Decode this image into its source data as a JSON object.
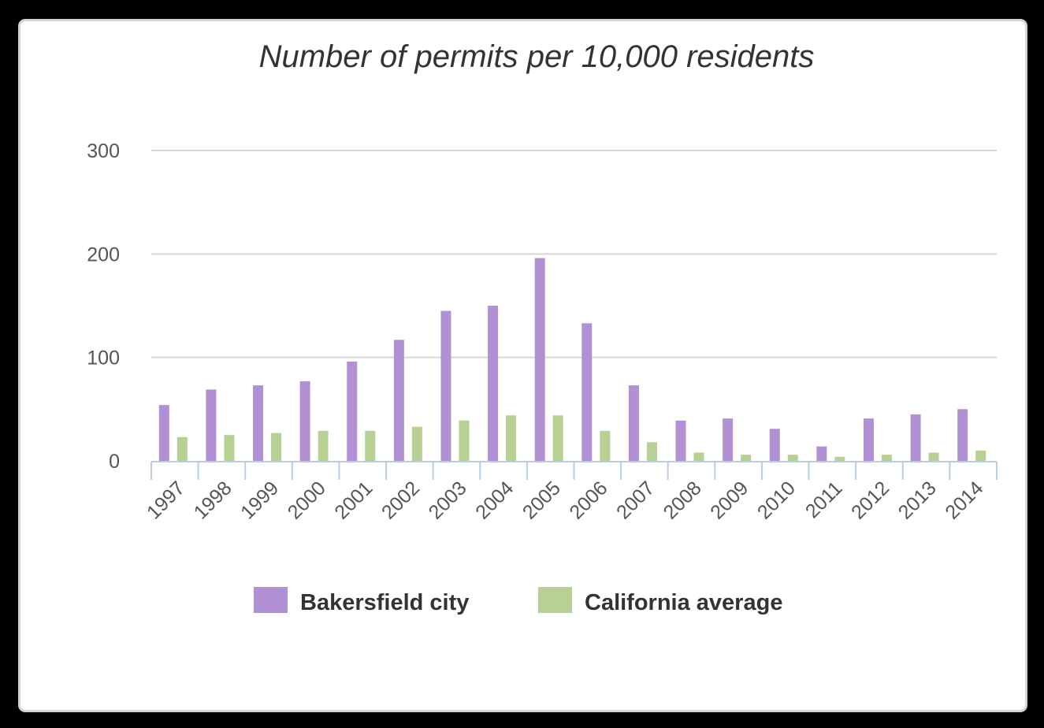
{
  "chart_data": {
    "type": "bar",
    "title": "Number of permits per 10,000 residents",
    "xlabel": "",
    "ylabel": "",
    "ylim": [
      0,
      300
    ],
    "yticks": [
      0,
      100,
      200,
      300
    ],
    "grid": true,
    "legend": "bottom-center",
    "categories": [
      "1997",
      "1998",
      "1999",
      "2000",
      "2001",
      "2002",
      "2003",
      "2004",
      "2005",
      "2006",
      "2007",
      "2008",
      "2009",
      "2010",
      "2011",
      "2012",
      "2013",
      "2014"
    ],
    "series": [
      {
        "name": "Bakersfield city",
        "color": "#b191d4",
        "values": [
          54,
          69,
          73,
          77,
          96,
          117,
          145,
          150,
          196,
          133,
          73,
          39,
          41,
          31,
          14,
          41,
          45,
          50
        ]
      },
      {
        "name": "California average",
        "color": "#b7d093",
        "values": [
          23,
          25,
          27,
          29,
          29,
          33,
          39,
          44,
          44,
          29,
          18,
          8,
          6,
          6,
          4,
          6,
          8,
          10
        ]
      }
    ]
  }
}
